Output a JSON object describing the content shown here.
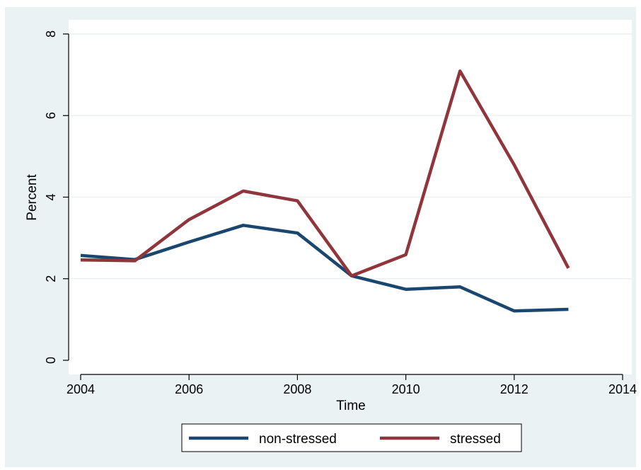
{
  "chart_data": {
    "type": "line",
    "xlabel": "Time",
    "ylabel": "Percent",
    "xlim": [
      2004,
      2014
    ],
    "ylim": [
      0,
      8
    ],
    "xticks": [
      2004,
      2006,
      2008,
      2010,
      2012,
      2014
    ],
    "yticks": [
      0,
      2,
      4,
      6,
      8
    ],
    "grid": true,
    "legend_position": "bottom",
    "x": [
      2004,
      2005,
      2006,
      2007,
      2008,
      2009,
      2010,
      2011,
      2012,
      2013
    ],
    "series": [
      {
        "name": "non-stressed",
        "color": "#1a476f",
        "values": [
          2.57,
          2.47,
          2.9,
          3.31,
          3.12,
          2.07,
          1.74,
          1.8,
          1.21,
          1.25
        ]
      },
      {
        "name": "stressed",
        "color": "#90353b",
        "values": [
          2.46,
          2.44,
          3.45,
          4.15,
          3.91,
          2.07,
          2.59,
          7.09,
          4.79,
          2.26
        ]
      }
    ],
    "colors": {
      "outer_background": "#eaf2f3",
      "plot_background": "#ffffff",
      "gridline": "#eaf2f3"
    }
  }
}
